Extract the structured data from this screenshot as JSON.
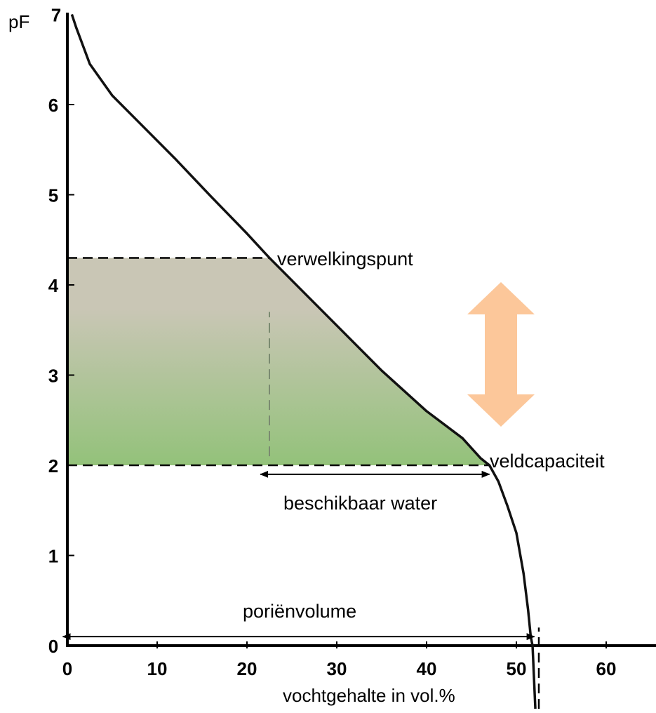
{
  "chart_data": {
    "type": "line",
    "title": "",
    "xlabel": "vochtgehalte in vol.%",
    "ylabel": "pF",
    "xlim": [
      0,
      66
    ],
    "ylim": [
      0,
      7
    ],
    "x_ticks": [
      0,
      10,
      20,
      30,
      40,
      50,
      60
    ],
    "y_ticks": [
      0,
      1,
      2,
      3,
      4,
      5,
      6,
      7
    ],
    "grid": false,
    "series": [
      {
        "x": [
          0.5,
          1.0,
          2.5,
          5.0,
          8.0,
          12.0,
          16.0,
          20.0,
          22.5,
          26.0,
          30.0,
          35.0,
          40.0,
          44.0,
          46.0,
          47.0,
          48.0,
          49.0,
          50.0,
          50.8,
          51.3,
          51.6,
          51.8
        ],
        "y": [
          7.0,
          6.85,
          6.45,
          6.1,
          5.8,
          5.4,
          4.98,
          4.57,
          4.3,
          3.95,
          3.55,
          3.05,
          2.6,
          2.3,
          2.08,
          2.0,
          1.82,
          1.55,
          1.25,
          0.8,
          0.4,
          0.1,
          0.0
        ]
      }
    ],
    "shaded_region": {
      "x_from": 0,
      "pf_from": 2.0,
      "pf_to": 4.3,
      "colors": [
        "#c9c6b5",
        "#93c27a"
      ]
    },
    "reference_lines": [
      {
        "pf": 4.3,
        "x_from": 0,
        "x_to": 22.5,
        "style": "dashed"
      },
      {
        "pf": 2.0,
        "x_from": 0,
        "x_to": 47,
        "style": "dashed"
      },
      {
        "x": 22.5,
        "pf_from": 2.1,
        "pf_to": 3.7,
        "style": "dashed"
      },
      {
        "x": 52.5,
        "pf_from": -0.7,
        "pf_to": 0.2,
        "style": "dashed"
      }
    ],
    "annotations": {
      "wilting_point": "verwelkingspunt",
      "field_capacity": "veldcapaciteit",
      "available_water": "beschikbaar water",
      "pore_volume": "poriënvolume"
    },
    "arrows": [
      {
        "label_key": "available_water",
        "pf": 1.9,
        "x_from": 21.5,
        "x_to": 47
      },
      {
        "label_key": "pore_volume",
        "pf": 0.1,
        "x_from": -0.5,
        "x_to": 52
      }
    ],
    "double_arrow_color": "#fcc79a"
  }
}
